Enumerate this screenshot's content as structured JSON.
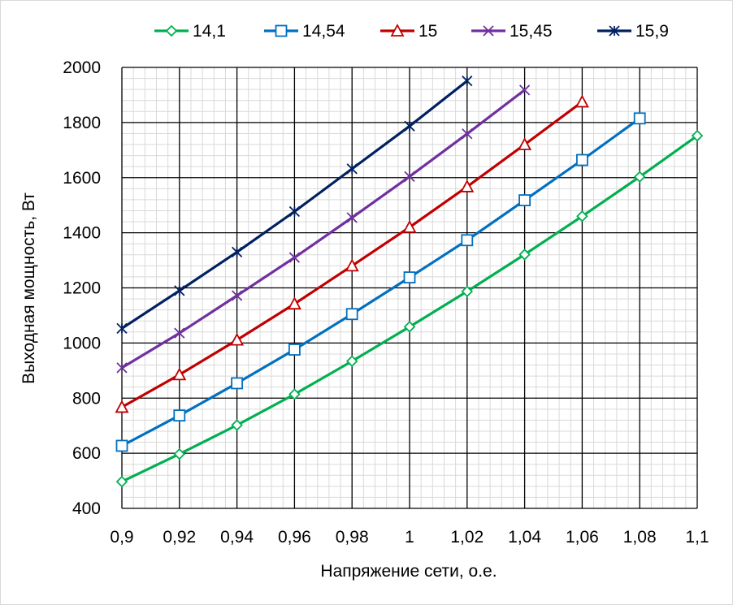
{
  "chart_data": {
    "type": "line",
    "title": "",
    "xlabel": "Напряжение сети, о.е.",
    "ylabel": "Выходная мощность, Вт",
    "xlim": [
      0.9,
      1.1
    ],
    "ylim": [
      400,
      2000
    ],
    "x_ticks": [
      "0,9",
      "0,92",
      "0,94",
      "0,96",
      "0,98",
      "1",
      "1,02",
      "1,04",
      "1,06",
      "1,08",
      "1,1"
    ],
    "y_ticks": [
      "400",
      "600",
      "800",
      "1000",
      "1200",
      "1400",
      "1600",
      "1800",
      "2000"
    ],
    "grid": true,
    "minor_grid": true,
    "legend_position": "top",
    "series": [
      {
        "name": "14,1",
        "color": "#00b050",
        "marker": "diamond",
        "x": [
          0.9,
          0.92,
          0.94,
          0.96,
          0.98,
          1.0,
          1.02,
          1.04,
          1.06,
          1.08,
          1.1
        ],
        "values": [
          497,
          597,
          702,
          814,
          934,
          1059,
          1187,
          1321,
          1460,
          1603,
          1752
        ]
      },
      {
        "name": "14,54",
        "color": "#0070c0",
        "marker": "square",
        "x": [
          0.9,
          0.92,
          0.94,
          0.96,
          0.98,
          1.0,
          1.02,
          1.04,
          1.06,
          1.08
        ],
        "values": [
          627,
          737,
          854,
          976,
          1105,
          1238,
          1373,
          1518,
          1664,
          1815
        ]
      },
      {
        "name": "15",
        "color": "#c00000",
        "marker": "triangle",
        "x": [
          0.9,
          0.92,
          0.94,
          0.96,
          0.98,
          1.0,
          1.02,
          1.04,
          1.06
        ],
        "values": [
          767,
          885,
          1011,
          1142,
          1280,
          1420,
          1567,
          1720,
          1875
        ]
      },
      {
        "name": "15,45",
        "color": "#7030a0",
        "marker": "x",
        "x": [
          0.9,
          0.92,
          0.94,
          0.96,
          0.98,
          1.0,
          1.02,
          1.04
        ],
        "values": [
          910,
          1036,
          1172,
          1310,
          1455,
          1604,
          1759,
          1918
        ]
      },
      {
        "name": "15,9",
        "color": "#002060",
        "marker": "star",
        "x": [
          0.9,
          0.92,
          0.94,
          0.96,
          0.98,
          1.0,
          1.02
        ],
        "values": [
          1053,
          1190,
          1330,
          1477,
          1632,
          1787,
          1951
        ]
      }
    ]
  }
}
